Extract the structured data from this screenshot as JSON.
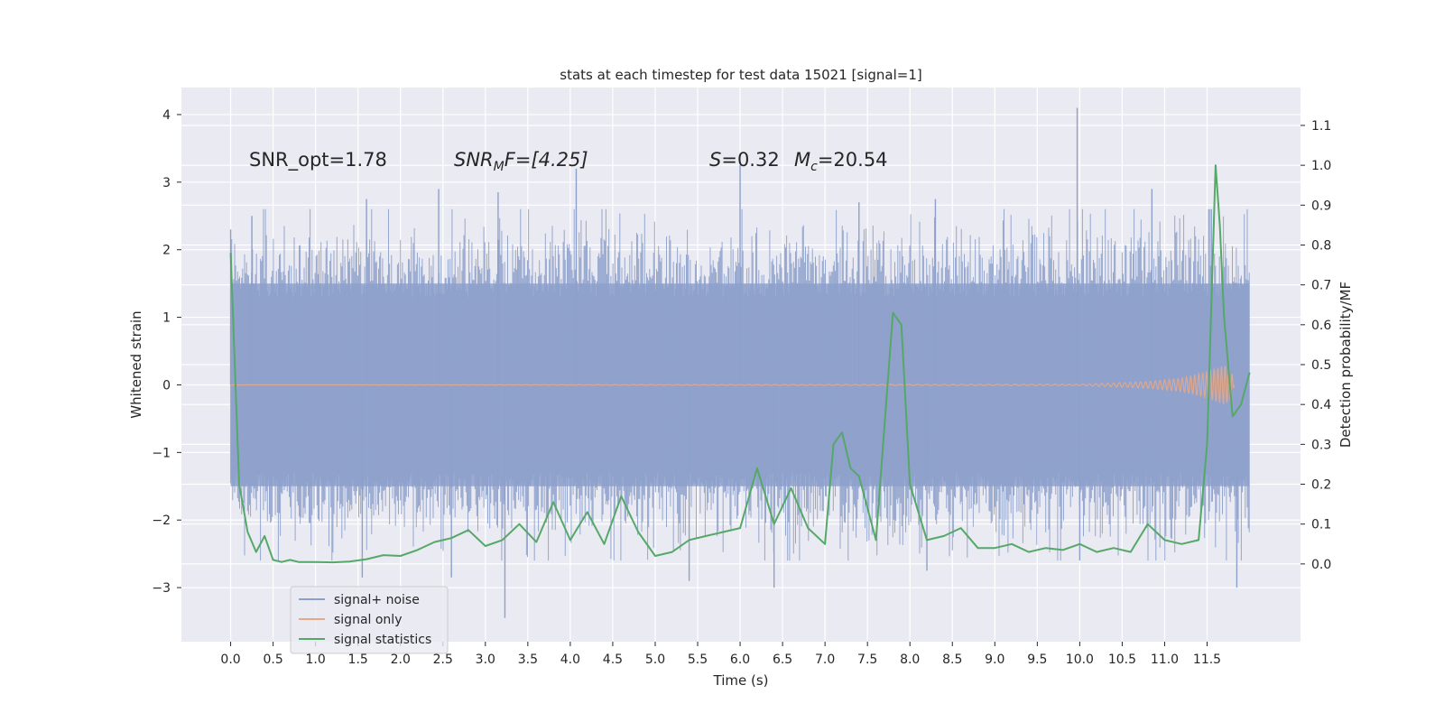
{
  "chart_data": {
    "type": "line",
    "title": "stats at each timestep for test data 15021 [signal=1]",
    "xlabel": "Time (s)",
    "ylabel": "Whitened strain",
    "y2label": "Detection probability/MF",
    "xlim": [
      -0.58,
      12.6
    ],
    "ylim": [
      -3.8,
      4.4
    ],
    "y2lim": [
      -0.195,
      1.195
    ],
    "x_ticks": [
      "0.0",
      "0.5",
      "1.0",
      "1.5",
      "2.0",
      "2.5",
      "3.0",
      "3.5",
      "4.0",
      "4.5",
      "5.0",
      "5.5",
      "6.0",
      "6.5",
      "7.0",
      "7.5",
      "8.0",
      "8.5",
      "9.0",
      "9.5",
      "10.0",
      "10.5",
      "11.0",
      "11.5"
    ],
    "y_ticks": [
      "−3",
      "−2",
      "−1",
      "0",
      "1",
      "2",
      "3",
      "4"
    ],
    "y2_ticks": [
      "0.0",
      "0.1",
      "0.2",
      "0.3",
      "0.4",
      "0.5",
      "0.6",
      "0.7",
      "0.8",
      "0.9",
      "1.0",
      "1.1"
    ],
    "grid": true,
    "legend_position": "lower-left",
    "annotations": {
      "snr_opt": "SNR_opt=1.78",
      "snr_mf_main": "SNR",
      "snr_mf_sub": "M",
      "snr_mf_rest": "F=[4.25]",
      "s_sym": "S",
      "s_rest": "=0.32",
      "mc_sym": "M",
      "mc_sub": "c",
      "mc_rest": "=20.54"
    },
    "series": [
      {
        "name": "signal+ noise",
        "axis": "left",
        "color": "#8da0cb",
        "x_range": [
          0.0,
          12.0
        ],
        "typical_envelope": [
          -1.5,
          1.5
        ],
        "peaks": [
          {
            "x": 0.0,
            "y": 2.3
          },
          {
            "x": 0.25,
            "y": 2.5
          },
          {
            "x": 1.6,
            "y": 2.75
          },
          {
            "x": 2.45,
            "y": 2.9
          },
          {
            "x": 3.15,
            "y": 2.85
          },
          {
            "x": 4.07,
            "y": 3.2
          },
          {
            "x": 6.0,
            "y": 3.25
          },
          {
            "x": 7.4,
            "y": 2.7
          },
          {
            "x": 8.3,
            "y": 2.75
          },
          {
            "x": 9.97,
            "y": 4.1
          },
          {
            "x": 10.85,
            "y": 2.9
          },
          {
            "x": 11.55,
            "y": 2.6
          },
          {
            "x": 1.55,
            "y": -2.85
          },
          {
            "x": 2.6,
            "y": -2.85
          },
          {
            "x": 3.23,
            "y": -3.45
          },
          {
            "x": 5.4,
            "y": -2.9
          },
          {
            "x": 6.4,
            "y": -3.0
          },
          {
            "x": 8.2,
            "y": -2.75
          },
          {
            "x": 10.0,
            "y": -2.6
          },
          {
            "x": 11.85,
            "y": -3.0
          }
        ]
      },
      {
        "name": "signal only",
        "axis": "left",
        "color": "#e5a98a",
        "x": [
          0.0,
          10.0,
          10.8,
          11.2,
          11.5,
          11.7,
          11.78,
          11.82
        ],
        "amplitude": [
          0.0,
          0.01,
          0.05,
          0.1,
          0.2,
          0.3,
          0.25,
          0.0
        ]
      },
      {
        "name": "signal statistics",
        "axis": "right",
        "color": "#55a868",
        "x": [
          0.0,
          0.1,
          0.2,
          0.3,
          0.4,
          0.5,
          0.6,
          0.7,
          0.8,
          0.9,
          1.0,
          1.2,
          1.4,
          1.6,
          1.8,
          2.0,
          2.2,
          2.4,
          2.6,
          2.8,
          3.0,
          3.2,
          3.4,
          3.6,
          3.8,
          4.0,
          4.2,
          4.4,
          4.6,
          4.8,
          5.0,
          5.2,
          5.4,
          5.6,
          5.8,
          6.0,
          6.2,
          6.4,
          6.6,
          6.8,
          7.0,
          7.1,
          7.2,
          7.3,
          7.4,
          7.6,
          7.8,
          7.9,
          8.0,
          8.2,
          8.4,
          8.6,
          8.8,
          9.0,
          9.2,
          9.4,
          9.6,
          9.8,
          10.0,
          10.2,
          10.4,
          10.6,
          10.8,
          11.0,
          11.2,
          11.4,
          11.5,
          11.6,
          11.65,
          11.7,
          11.8,
          11.9,
          12.0
        ],
        "y": [
          0.78,
          0.2,
          0.08,
          0.03,
          0.07,
          0.01,
          0.005,
          0.01,
          0.005,
          0.005,
          0.005,
          0.004,
          0.006,
          0.012,
          0.022,
          0.02,
          0.035,
          0.055,
          0.065,
          0.085,
          0.045,
          0.06,
          0.1,
          0.055,
          0.155,
          0.06,
          0.13,
          0.05,
          0.17,
          0.08,
          0.02,
          0.03,
          0.06,
          0.07,
          0.08,
          0.09,
          0.24,
          0.1,
          0.19,
          0.09,
          0.05,
          0.3,
          0.33,
          0.24,
          0.22,
          0.06,
          0.63,
          0.6,
          0.2,
          0.06,
          0.07,
          0.09,
          0.04,
          0.04,
          0.05,
          0.03,
          0.04,
          0.035,
          0.05,
          0.03,
          0.04,
          0.03,
          0.1,
          0.06,
          0.05,
          0.06,
          0.3,
          1.0,
          0.85,
          0.62,
          0.37,
          0.4,
          0.48
        ]
      }
    ]
  }
}
